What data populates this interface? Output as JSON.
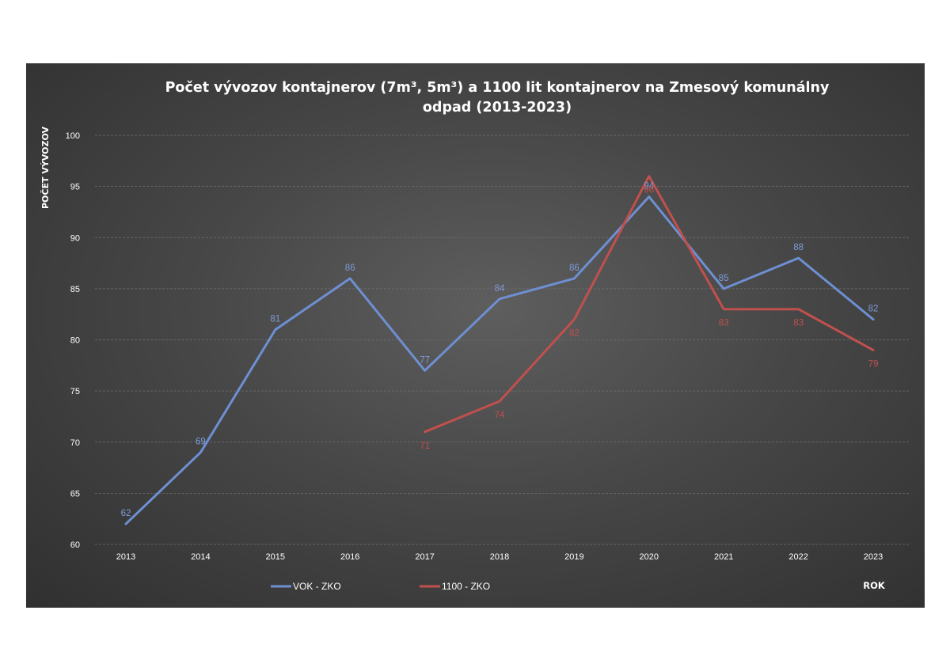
{
  "chart_data": {
    "type": "line",
    "title_lines": [
      "Počet vývozov kontajnerov (7m³, 5m³) a 1100 lit kontajnerov na Zmesový komunálny",
      "odpad (2013-2023)"
    ],
    "xlabel": "ROK",
    "ylabel": "POČET VÝVOZOV",
    "categories": [
      "2013",
      "2014",
      "2015",
      "2016",
      "2017",
      "2018",
      "2019",
      "2020",
      "2021",
      "2022",
      "2023"
    ],
    "ylim": [
      60,
      100
    ],
    "yticks": [
      60,
      65,
      70,
      75,
      80,
      85,
      90,
      95,
      100
    ],
    "grid": true,
    "legend_position": "bottom",
    "series": [
      {
        "name": "VOK - ZKO",
        "color": "#6e8fd2",
        "label_color": "#7d9ad8",
        "label_position": "above",
        "values": [
          62,
          69,
          81,
          86,
          77,
          84,
          86,
          94,
          85,
          88,
          82
        ]
      },
      {
        "name": "1100 - ZKO",
        "color": "#c0504d",
        "label_color": "#c0504d",
        "label_position": "below",
        "values": [
          null,
          null,
          null,
          null,
          71,
          74,
          82,
          96,
          83,
          83,
          79
        ]
      }
    ]
  }
}
